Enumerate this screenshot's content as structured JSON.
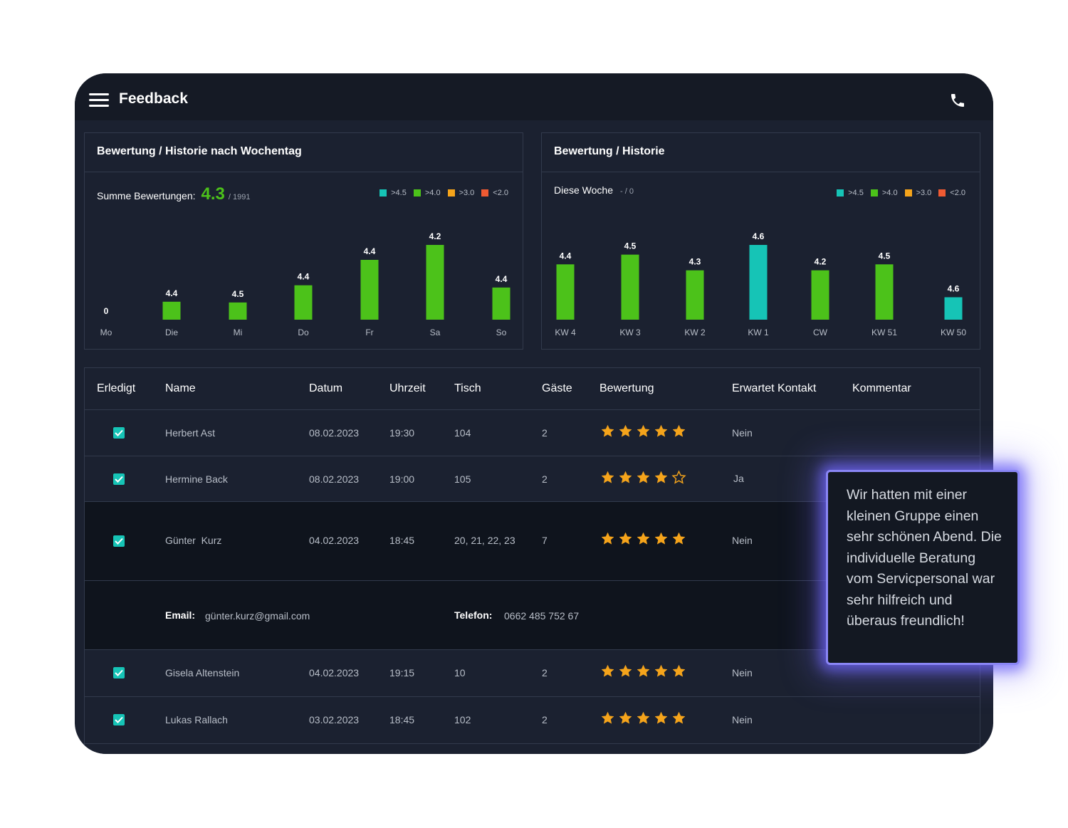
{
  "app": {
    "title": "Feedback"
  },
  "icons": {
    "menu": "hamburger-menu-icon",
    "phone": "phone-icon",
    "check": "checkmark-icon",
    "star": "star-icon"
  },
  "colors": {
    "excellent": "#16c4b6",
    "good": "#4cc21a",
    "ok": "#f5a41b",
    "bad": "#f05a32",
    "star": "#f5a41b",
    "accent_glow": "#8a86f5"
  },
  "legend": [
    {
      "label": ">4.5",
      "color": "#16c4b6"
    },
    {
      "label": ">4.0",
      "color": "#4cc21a"
    },
    {
      "label": ">3.0",
      "color": "#f5a41b"
    },
    {
      "label": "<2.0",
      "color": "#f05a32"
    }
  ],
  "weekday_panel": {
    "title": "Bewertung / Historie nach Wochentag",
    "sum_label": "Summe Bewertungen:",
    "sum_value": "4.3",
    "sum_count": "/ 1991"
  },
  "history_panel": {
    "title": "Bewertung / Historie",
    "week_label": "Diese Woche",
    "week_value": "- / 0"
  },
  "chart_data": [
    {
      "type": "bar",
      "title": "Bewertung / Historie nach Wochentag",
      "categories": [
        "Mo",
        "Die",
        "Mi",
        "Do",
        "Fr",
        "Sa",
        "So"
      ],
      "values": [
        0,
        4.4,
        4.5,
        4.4,
        4.4,
        4.2,
        4.4
      ],
      "value_labels": [
        "0",
        "4.4",
        "4.5",
        "4.4",
        "4.4",
        "4.2",
        "4.4"
      ],
      "rel_heights": [
        0,
        0.24,
        0.23,
        0.46,
        0.8,
        1.0,
        0.43
      ],
      "colors": [
        "#4cc21a",
        "#4cc21a",
        "#4cc21a",
        "#4cc21a",
        "#4cc21a",
        "#4cc21a",
        "#4cc21a"
      ],
      "legend": [
        ">4.5",
        ">4.0",
        ">3.0",
        "<2.0"
      ]
    },
    {
      "type": "bar",
      "title": "Bewertung / Historie",
      "categories": [
        "KW 4",
        "KW 3",
        "KW 2",
        "KW 1",
        "CW",
        "KW 51",
        "KW 50"
      ],
      "values": [
        4.4,
        4.5,
        4.3,
        4.6,
        4.2,
        4.5,
        4.6
      ],
      "value_labels": [
        "4.4",
        "4.5",
        "4.3",
        "4.6",
        "4.2",
        "4.5",
        "4.6"
      ],
      "rel_heights": [
        0.74,
        0.87,
        0.66,
        1.0,
        0.66,
        0.74,
        0.3
      ],
      "colors": [
        "#4cc21a",
        "#4cc21a",
        "#4cc21a",
        "#16c4b6",
        "#4cc21a",
        "#4cc21a",
        "#16c4b6"
      ],
      "legend": [
        ">4.5",
        ">4.0",
        ">3.0",
        "<2.0"
      ]
    }
  ],
  "table": {
    "headers": [
      "Erledigt",
      "Name",
      "Datum",
      "Uhrzeit",
      "Tisch",
      "Gäste",
      "Bewertung",
      "Erwartet Kontakt",
      "Kommentar"
    ],
    "rows": [
      {
        "done": true,
        "name": "Herbert Ast",
        "date": "08.02.2023",
        "time": "19:30",
        "table": "104",
        "guests": "2",
        "rating": 5,
        "contact": "Nein"
      },
      {
        "done": true,
        "name": "Hermine Back",
        "date": "08.02.2023",
        "time": "19:00",
        "table": "105",
        "guests": "2",
        "rating": 4,
        "contact": "Ja"
      },
      {
        "done": true,
        "name": "Günter  Kurz",
        "date": "04.02.2023",
        "time": "18:45",
        "table": "20, 21, 22, 23",
        "guests": "7",
        "rating": 5,
        "contact": "Nein"
      },
      {
        "done": true,
        "name": "Gisela Altenstein",
        "date": "04.02.2023",
        "time": "19:15",
        "table": "10",
        "guests": "2",
        "rating": 5,
        "contact": "Nein"
      },
      {
        "done": true,
        "name": "Lukas Rallach",
        "date": "03.02.2023",
        "time": "18:45",
        "table": "102",
        "guests": "2",
        "rating": 5,
        "contact": "Nein"
      }
    ],
    "detail": {
      "email_label": "Email:",
      "email": "günter.kurz@gmail.com",
      "phone_label": "Telefon:",
      "phone": "0662 485 752 67"
    }
  },
  "comment_popup": {
    "text": "Wir hatten mit einer kleinen Gruppe einen sehr schönen Abend. Die individuelle Beratung vom Servicpersonal war sehr hilfreich und überaus freundlich!"
  }
}
